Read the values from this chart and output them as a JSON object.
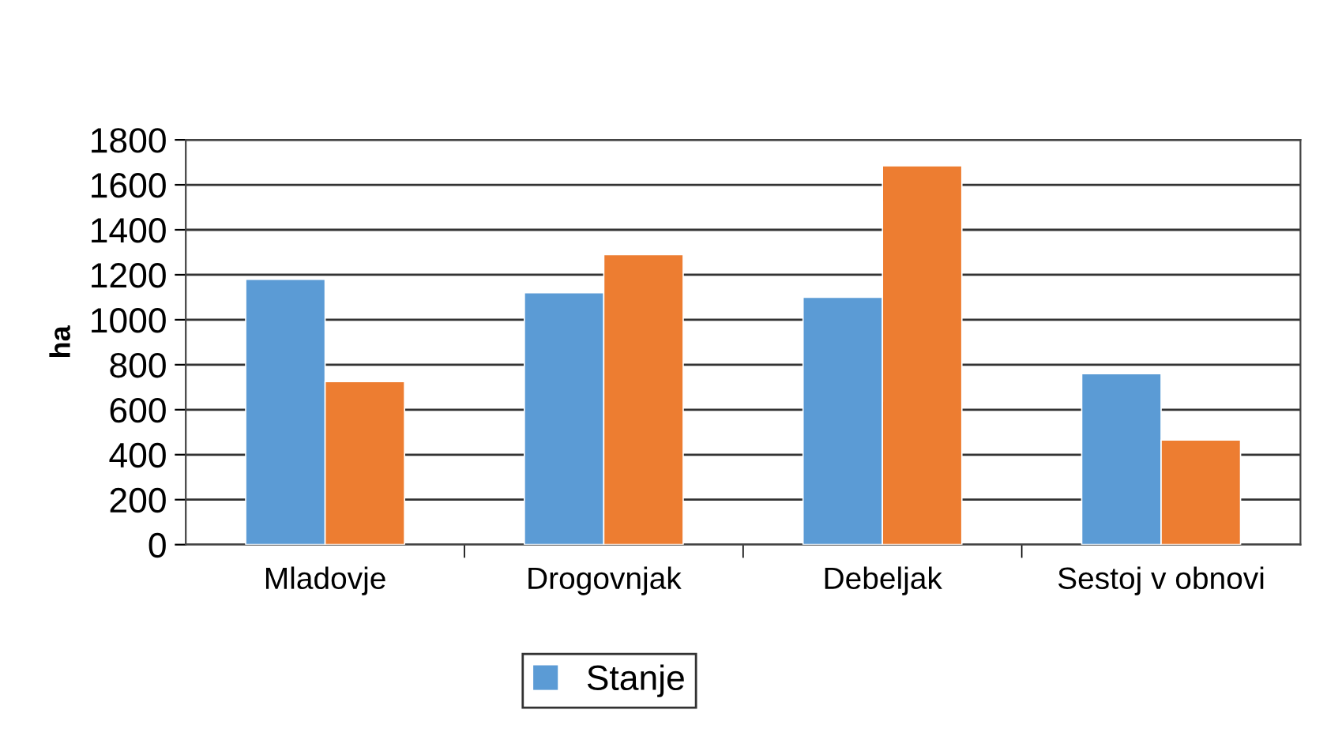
{
  "chart_data": {
    "type": "bar",
    "ylabel": "ha",
    "categories": [
      "Mladovje",
      "Drogovnjak",
      "Debeljak",
      "Sestoj v obnovi"
    ],
    "series": [
      {
        "name": "Stanje",
        "color": "#5b9bd5",
        "values": [
          1180,
          1120,
          1100,
          760
        ]
      },
      {
        "color": "#ed7d31",
        "values": [
          725,
          1290,
          1685,
          465
        ]
      }
    ],
    "ylim": [
      0,
      1800
    ],
    "yticks": [
      0,
      200,
      400,
      600,
      800,
      1000,
      1200,
      1400,
      1600,
      1800
    ],
    "grid": "y",
    "legend": "bottom"
  }
}
